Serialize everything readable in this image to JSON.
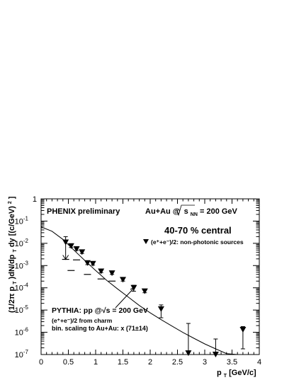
{
  "chart_data": {
    "type": "scatter",
    "xlabel_main": "p",
    "xlabel_sub": "T",
    "xlabel_unit": " [GeV/c]",
    "ylabel": "(1/2π p_T)dN/dp_T dy [(c/GeV)²]",
    "ylabel_parts": {
      "pre": "(1/2π p",
      "sub1": "T",
      "mid": ")dN/dp",
      "sub2": "T",
      "post": "dy [(c/GeV)",
      "sup": "2",
      "end": "]"
    },
    "xlim": [
      0,
      4
    ],
    "ylim_log10": [
      -7,
      0
    ],
    "log_y": true,
    "x_ticks": [
      "0",
      "0.5",
      "1",
      "1.5",
      "2",
      "2.5",
      "3",
      "3.5",
      "4"
    ],
    "y_ticks": [
      {
        "base": "1",
        "exp": ""
      },
      {
        "base": "10",
        "exp": "-1"
      },
      {
        "base": "10",
        "exp": "-2"
      },
      {
        "base": "10",
        "exp": "-3"
      },
      {
        "base": "10",
        "exp": "-4"
      },
      {
        "base": "10",
        "exp": "-5"
      },
      {
        "base": "10",
        "exp": "-6"
      },
      {
        "base": "10",
        "exp": "-7"
      }
    ],
    "annotations": {
      "phenix": "PHENIX preliminary",
      "system_pre": "Au+Au @",
      "system_s": "s",
      "system_sub": "NN",
      "system_post": " = 200 GeV",
      "centrality": "40-70 % central",
      "legend_label": "(e⁺+e⁻)/2: non-photonic sources",
      "pythia_line1": "PYTHIA: pp @√s = 200 GeV",
      "pythia_line2": "(e⁺+e⁻)/2 from charm",
      "pythia_line3": "bin. scaling to Au+Au: x (71±14)"
    },
    "series": [
      {
        "marker": "down-triangle",
        "points": [
          {
            "x": 0.45,
            "y": 0.011,
            "ylo": 0.0019,
            "yhi": 0.02
          },
          {
            "x": 0.55,
            "y": 0.0075,
            "ylo": 0.0065,
            "yhi": 0.0085
          },
          {
            "x": 0.65,
            "y": 0.0055,
            "ylo": 0.0048,
            "yhi": 0.0062
          },
          {
            "x": 0.75,
            "y": 0.004,
            "ylo": 0.0035,
            "yhi": 0.0045
          },
          {
            "x": 0.85,
            "y": 0.0013,
            "ylo": 0.0011,
            "yhi": 0.0015
          },
          {
            "x": 0.95,
            "y": 0.0012,
            "ylo": 0.00105,
            "yhi": 0.00135
          },
          {
            "x": 1.1,
            "y": 0.00055,
            "ylo": 0.00048,
            "yhi": 0.00062
          },
          {
            "x": 1.3,
            "y": 0.00045,
            "ylo": 0.0004,
            "yhi": 0.0005
          },
          {
            "x": 1.5,
            "y": 0.00023,
            "ylo": 0.0002,
            "yhi": 0.00026
          },
          {
            "x": 1.7,
            "y": 0.0001,
            "ylo": 7e-05,
            "yhi": 0.00013
          },
          {
            "x": 1.9,
            "y": 7e-05,
            "ylo": 6e-05,
            "yhi": 8e-05
          },
          {
            "x": 2.2,
            "y": 1.1e-05,
            "ylo": 4.5e-06,
            "yhi": 1.7e-05
          },
          {
            "x": 2.7,
            "y": 1.15e-07,
            "ylo": 1e-07,
            "yhi": 2.5e-06
          },
          {
            "x": 3.2,
            "y": 1e-07,
            "ylo": 1e-07,
            "yhi": 5e-07
          },
          {
            "x": 3.7,
            "y": 1.3e-06,
            "ylo": 1.8e-07,
            "yhi": 1.8e-06
          }
        ]
      }
    ],
    "ticks_horizontal": [
      {
        "x": 0.45,
        "y": 0.0019
      },
      {
        "x": 0.55,
        "y": 0.0006
      },
      {
        "x": 0.65,
        "y": 0.0018
      },
      {
        "x": 0.85,
        "y": 0.0004
      },
      {
        "x": 1.1,
        "y": 0.00025
      },
      {
        "x": 1.3,
        "y": 0.0002
      }
    ],
    "pythia_curve": [
      {
        "x": 0.0,
        "y": 0.055
      },
      {
        "x": 0.2,
        "y": 0.035
      },
      {
        "x": 0.4,
        "y": 0.015
      },
      {
        "x": 0.6,
        "y": 0.005
      },
      {
        "x": 0.8,
        "y": 0.0017
      },
      {
        "x": 1.0,
        "y": 0.0006
      },
      {
        "x": 1.2,
        "y": 0.00022
      },
      {
        "x": 1.4,
        "y": 9e-05
      },
      {
        "x": 1.6,
        "y": 3.8e-05
      },
      {
        "x": 1.8,
        "y": 1.6e-05
      },
      {
        "x": 2.0,
        "y": 7.5e-06
      },
      {
        "x": 2.2,
        "y": 3.7e-06
      },
      {
        "x": 2.4,
        "y": 1.9e-06
      },
      {
        "x": 2.6,
        "y": 9.8e-07
      },
      {
        "x": 2.8,
        "y": 5.4e-07
      },
      {
        "x": 3.0,
        "y": 3e-07
      },
      {
        "x": 3.2,
        "y": 1.8e-07
      },
      {
        "x": 3.4,
        "y": 1.1e-07
      },
      {
        "x": 3.6,
        "y": 6.8e-08
      },
      {
        "x": 3.8,
        "y": 4.2e-08
      }
    ],
    "grid": false,
    "legend_position": "top-right"
  }
}
